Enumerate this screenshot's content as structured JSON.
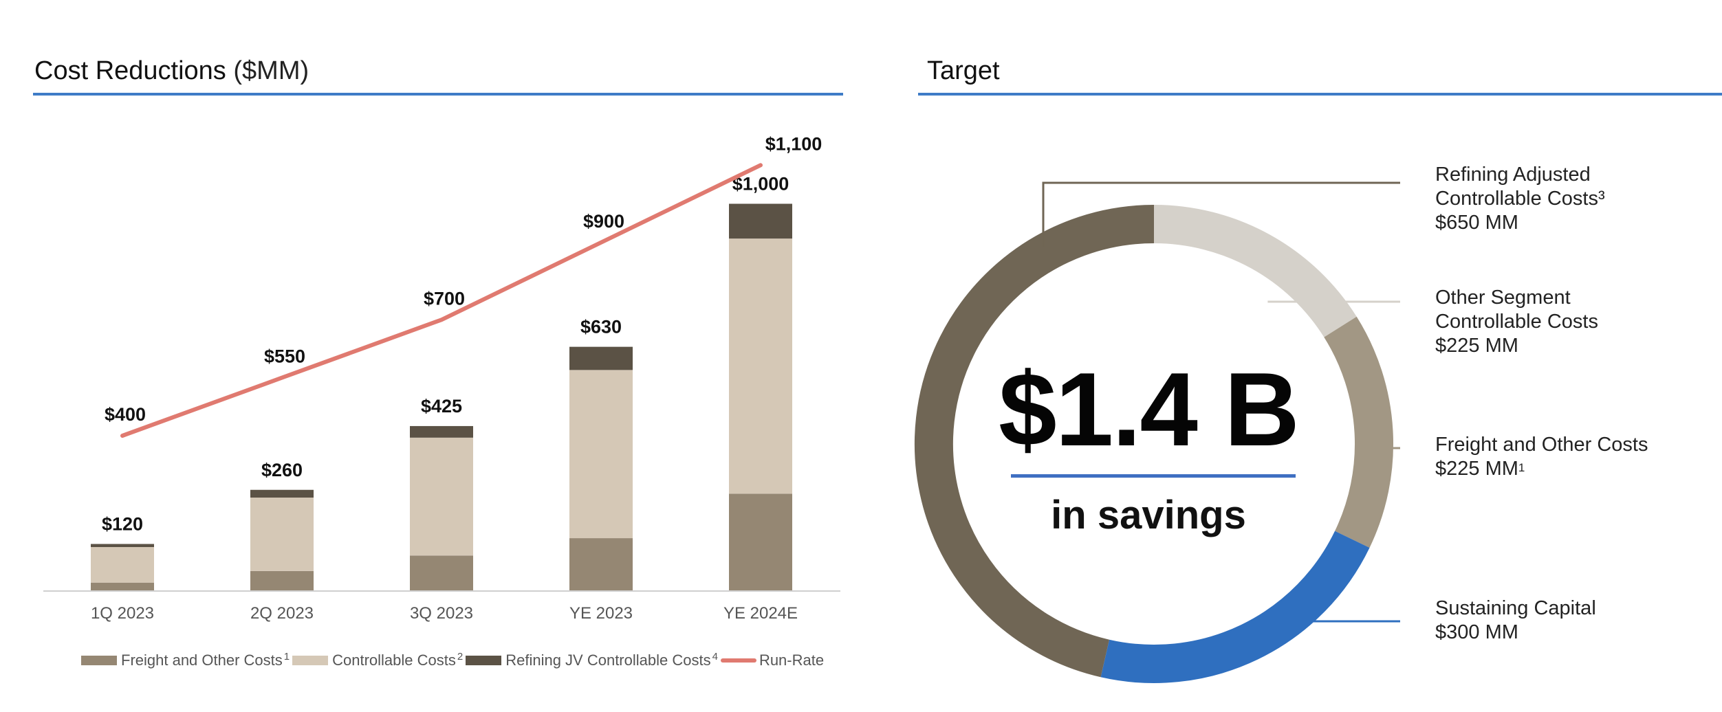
{
  "left_panel": {
    "title": "Cost Reductions",
    "unit": "($MM)"
  },
  "right_panel": {
    "title": "Target"
  },
  "legend": [
    {
      "label": "Freight and Other Costs",
      "sup": "1",
      "color": "#958773"
    },
    {
      "label": "Controllable Costs",
      "sup": "2",
      "color": "#d5c8b6"
    },
    {
      "label": "Refining JV Controllable Costs",
      "sup": "4",
      "color": "#5b5245"
    },
    {
      "label": "Run-Rate",
      "sup": "",
      "color": "#e07a70"
    }
  ],
  "chart_data": [
    {
      "type": "bar",
      "stacked": true,
      "categories": [
        "1Q 2023",
        "2Q 2023",
        "3Q 2023",
        "YE 2023",
        "YE 2024E"
      ],
      "series": [
        {
          "name": "Freight and Other Costs",
          "values": [
            20,
            50,
            90,
            135,
            250
          ],
          "color": "#958773"
        },
        {
          "name": "Controllable Costs",
          "values": [
            92,
            190,
            305,
            435,
            660
          ],
          "color": "#d5c8b6"
        },
        {
          "name": "Refining JV Controllable Costs",
          "values": [
            8,
            20,
            30,
            60,
            90
          ],
          "color": "#5b5245"
        }
      ],
      "totals": [
        "$120",
        "$260",
        "$425",
        "$630",
        "$1,000"
      ],
      "line": {
        "name": "Run-Rate",
        "values": [
          400,
          550,
          700,
          900,
          1100
        ],
        "labels": [
          "$400",
          "$550",
          "$700",
          "$900",
          "$1,100"
        ],
        "color": "#e07a70"
      },
      "ylim": [
        0,
        1200
      ],
      "grid": false,
      "legend_position": "bottom"
    },
    {
      "type": "pie",
      "donut": true,
      "center_text": "$1.4 B",
      "center_subtext": "in savings",
      "slices": [
        {
          "name": "Other Segment Controllable Costs",
          "value": 225,
          "color": "#d5d1ca"
        },
        {
          "name": "Freight and Other Costs",
          "value": 225,
          "color": "#a29784"
        },
        {
          "name": "Sustaining Capital",
          "value": 300,
          "color": "#2f6fbf"
        },
        {
          "name": "Refining Adjusted Controllable Costs",
          "value": 650,
          "color": "#706655"
        }
      ]
    }
  ],
  "callouts": [
    {
      "lines": [
        "Refining Adjusted",
        "Controllable Costs³",
        "$650 MM"
      ],
      "sup": ""
    },
    {
      "lines": [
        "Other Segment",
        "Controllable Costs",
        "$225 MM"
      ],
      "sup": ""
    },
    {
      "lines": [
        "Freight and Other Costs",
        "$225 MM"
      ],
      "sup": "1"
    },
    {
      "lines": [
        "Sustaining Capital",
        "$300 MM"
      ],
      "sup": ""
    }
  ]
}
